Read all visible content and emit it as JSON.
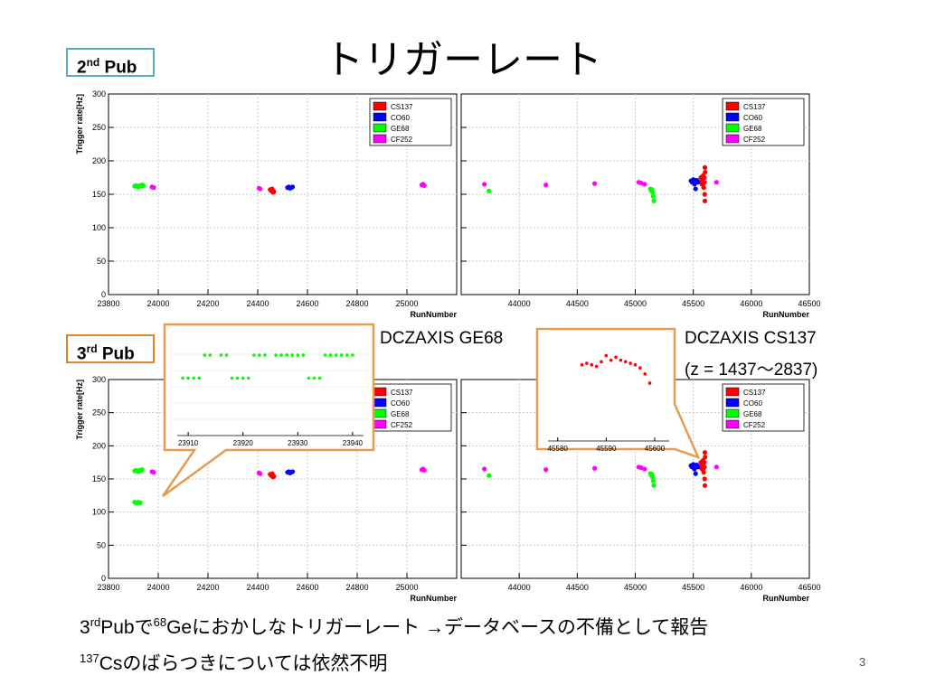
{
  "slide": {
    "title": "トリガーレート",
    "pub2": {
      "num": "2",
      "sup": "nd",
      "word": "Pub"
    },
    "pub3": {
      "num": "3",
      "sup": "rd",
      "word": "Pub"
    },
    "caption_ge": "DCZAXIS GE68",
    "caption_cs": "DCZAXIS CS137",
    "caption_z": "(z = 1437〜2837)",
    "line1": {
      "pre": "3",
      "sup1": "rd",
      "mid1": "Pubで",
      "sup2": "68",
      "rest": "Geにおかしなトリガーレート →データベースの不備として報告"
    },
    "line2": {
      "sup": "137",
      "rest": "Csのばらつきについては依然不明"
    },
    "page": "3"
  },
  "chart_data": [
    {
      "type": "scatter",
      "id": "top-left",
      "xlabel": "RunNumber",
      "ylabel": "Trigger rate[Hz]",
      "xlim": [
        23800,
        25200
      ],
      "ylim": [
        0,
        300
      ],
      "xticks": [
        23800,
        24000,
        24200,
        24400,
        24600,
        24800,
        25000
      ],
      "yticks": [
        0,
        50,
        100,
        150,
        200,
        250,
        300
      ],
      "grid": true,
      "legend": "top-right",
      "series": [
        {
          "name": "CS137",
          "color": "#ff0000",
          "points": [
            [
              24450,
              157
            ],
            [
              24455,
              155
            ],
            [
              24460,
              156
            ],
            [
              24465,
              154
            ],
            [
              24458,
              158
            ],
            [
              24462,
              153
            ]
          ]
        },
        {
          "name": "CO60",
          "color": "#0000ff",
          "points": [
            [
              24520,
              160
            ],
            [
              24525,
              161
            ],
            [
              24530,
              159
            ],
            [
              24535,
              160
            ],
            [
              24540,
              161
            ]
          ]
        },
        {
          "name": "GE68",
          "color": "#00ff00",
          "points": [
            [
              23905,
              162
            ],
            [
              23910,
              163
            ],
            [
              23915,
              162
            ],
            [
              23920,
              161
            ],
            [
              23925,
              163
            ],
            [
              23930,
              162
            ],
            [
              23935,
              164
            ],
            [
              23940,
              163
            ]
          ]
        },
        {
          "name": "CF252",
          "color": "#ff00ff",
          "points": [
            [
              23975,
              161
            ],
            [
              23982,
              160
            ],
            [
              24405,
              159
            ],
            [
              24410,
              158
            ],
            [
              25060,
              164
            ],
            [
              25065,
              165
            ],
            [
              25070,
              163
            ]
          ]
        }
      ]
    },
    {
      "type": "scatter",
      "id": "top-right",
      "xlabel": "RunNumber",
      "ylabel": "",
      "xlim": [
        43500,
        46500
      ],
      "ylim": [
        0,
        300
      ],
      "xticks": [
        44000,
        44500,
        45000,
        45500,
        46000,
        46500
      ],
      "yticks": [
        0,
        50,
        100,
        150,
        200,
        250,
        300
      ],
      "grid": true,
      "legend": "top-right",
      "series": [
        {
          "name": "CS137",
          "color": "#ff0000",
          "points": [
            [
              45560,
              168
            ],
            [
              45565,
              175
            ],
            [
              45570,
              170
            ],
            [
              45575,
              165
            ],
            [
              45580,
              172
            ],
            [
              45585,
              178
            ],
            [
              45590,
              160
            ],
            [
              45595,
              175
            ],
            [
              45598,
              150
            ],
            [
              45600,
              140
            ],
            [
              45600,
              190
            ],
            [
              45602,
              183
            ],
            [
              45597,
              168
            ],
            [
              45585,
              165
            ]
          ]
        },
        {
          "name": "CO60",
          "color": "#0000ff",
          "points": [
            [
              45480,
              170
            ],
            [
              45490,
              168
            ],
            [
              45500,
              172
            ],
            [
              45510,
              165
            ],
            [
              45520,
              158
            ],
            [
              45530,
              171
            ],
            [
              45540,
              168
            ]
          ]
        },
        {
          "name": "GE68",
          "color": "#00ff00",
          "points": [
            [
              43740,
              155
            ],
            [
              45130,
              158
            ],
            [
              45140,
              155
            ],
            [
              45150,
              153
            ],
            [
              45155,
              147
            ],
            [
              45160,
              140
            ],
            [
              45145,
              157
            ]
          ]
        },
        {
          "name": "CF252",
          "color": "#ff00ff",
          "points": [
            [
              43700,
              165
            ],
            [
              44230,
              164
            ],
            [
              44650,
              166
            ],
            [
              45030,
              168
            ],
            [
              45050,
              167
            ],
            [
              45080,
              165
            ],
            [
              45700,
              168
            ]
          ]
        }
      ]
    },
    {
      "type": "scatter",
      "id": "bottom-left",
      "xlabel": "RunNumber",
      "ylabel": "Trigger rate[Hz]",
      "xlim": [
        23800,
        25200
      ],
      "ylim": [
        0,
        300
      ],
      "xticks": [
        23800,
        24000,
        24200,
        24400,
        24600,
        24800,
        25000
      ],
      "yticks": [
        0,
        50,
        100,
        150,
        200,
        250,
        300
      ],
      "grid": true,
      "legend": "top-right",
      "series": [
        {
          "name": "CS137",
          "color": "#ff0000",
          "points": [
            [
              24450,
              157
            ],
            [
              24455,
              155
            ],
            [
              24460,
              156
            ],
            [
              24465,
              154
            ],
            [
              24458,
              158
            ],
            [
              24462,
              153
            ]
          ]
        },
        {
          "name": "CO60",
          "color": "#0000ff",
          "points": [
            [
              24520,
              160
            ],
            [
              24525,
              161
            ],
            [
              24530,
              159
            ],
            [
              24535,
              160
            ],
            [
              24540,
              161
            ]
          ]
        },
        {
          "name": "GE68",
          "color": "#00ff00",
          "points": [
            [
              23905,
              162
            ],
            [
              23910,
              163
            ],
            [
              23915,
              162
            ],
            [
              23920,
              161
            ],
            [
              23925,
              163
            ],
            [
              23930,
              162
            ],
            [
              23935,
              164
            ],
            [
              23905,
              115
            ],
            [
              23912,
              114
            ],
            [
              23920,
              115
            ],
            [
              23928,
              114
            ]
          ]
        },
        {
          "name": "CF252",
          "color": "#ff00ff",
          "points": [
            [
              23975,
              161
            ],
            [
              23982,
              160
            ],
            [
              24405,
              159
            ],
            [
              24410,
              158
            ],
            [
              25060,
              164
            ],
            [
              25065,
              165
            ],
            [
              25070,
              163
            ]
          ]
        }
      ]
    },
    {
      "type": "scatter",
      "id": "bottom-right",
      "xlabel": "RunNumber",
      "ylabel": "",
      "xlim": [
        43500,
        46500
      ],
      "ylim": [
        0,
        300
      ],
      "xticks": [
        44000,
        44500,
        45000,
        45500,
        46000,
        46500
      ],
      "yticks": [
        0,
        50,
        100,
        150,
        200,
        250,
        300
      ],
      "grid": true,
      "legend": "top-right",
      "series": [
        {
          "name": "CS137",
          "color": "#ff0000",
          "points": [
            [
              45560,
              168
            ],
            [
              45565,
              175
            ],
            [
              45570,
              170
            ],
            [
              45575,
              165
            ],
            [
              45580,
              172
            ],
            [
              45585,
              178
            ],
            [
              45590,
              160
            ],
            [
              45595,
              175
            ],
            [
              45598,
              150
            ],
            [
              45600,
              140
            ],
            [
              45600,
              190
            ],
            [
              45602,
              183
            ],
            [
              45597,
              168
            ],
            [
              45585,
              165
            ]
          ]
        },
        {
          "name": "CO60",
          "color": "#0000ff",
          "points": [
            [
              45480,
              170
            ],
            [
              45490,
              168
            ],
            [
              45500,
              172
            ],
            [
              45510,
              165
            ],
            [
              45520,
              158
            ],
            [
              45530,
              171
            ],
            [
              45540,
              168
            ]
          ]
        },
        {
          "name": "GE68",
          "color": "#00ff00",
          "points": [
            [
              43740,
              155
            ],
            [
              45130,
              158
            ],
            [
              45140,
              155
            ],
            [
              45150,
              153
            ],
            [
              45155,
              147
            ],
            [
              45160,
              140
            ],
            [
              45145,
              157
            ]
          ]
        },
        {
          "name": "CF252",
          "color": "#ff00ff",
          "points": [
            [
              43700,
              165
            ],
            [
              44230,
              164
            ],
            [
              44650,
              166
            ],
            [
              45030,
              168
            ],
            [
              45050,
              167
            ],
            [
              45080,
              165
            ],
            [
              45700,
              168
            ]
          ]
        }
      ]
    },
    {
      "type": "scatter",
      "id": "inset-ge68",
      "xlim": [
        23908,
        23942
      ],
      "ylim": [
        100,
        125
      ],
      "xticks": [
        23910,
        23920,
        23930,
        23940
      ],
      "series": [
        {
          "name": "GE68",
          "color": "#00ff00",
          "points": [
            [
              23909,
              115
            ],
            [
              23910,
              115
            ],
            [
              23911,
              115
            ],
            [
              23912,
              115
            ],
            [
              23913,
              121
            ],
            [
              23914,
              121
            ],
            [
              23916,
              121
            ],
            [
              23917,
              121
            ],
            [
              23918,
              115
            ],
            [
              23919,
              115
            ],
            [
              23920,
              115
            ],
            [
              23921,
              115
            ],
            [
              23922,
              121
            ],
            [
              23923,
              121
            ],
            [
              23924,
              121
            ],
            [
              23926,
              121
            ],
            [
              23927,
              121
            ],
            [
              23928,
              121
            ],
            [
              23929,
              121
            ],
            [
              23930,
              121
            ],
            [
              23931,
              121
            ],
            [
              23932,
              115
            ],
            [
              23933,
              115
            ],
            [
              23934,
              115
            ],
            [
              23935,
              121
            ],
            [
              23936,
              121
            ],
            [
              23937,
              121
            ],
            [
              23938,
              121
            ],
            [
              23939,
              121
            ],
            [
              23940,
              121
            ]
          ]
        }
      ]
    },
    {
      "type": "scatter",
      "id": "inset-cs137",
      "xlim": [
        45578,
        45603
      ],
      "ylim": [
        130,
        200
      ],
      "xticks": [
        45580,
        45590,
        45600
      ],
      "series": [
        {
          "name": "CS137",
          "color": "#ff0000",
          "points": [
            [
              45585,
              180
            ],
            [
              45586,
              181
            ],
            [
              45587,
              180
            ],
            [
              45588,
              179
            ],
            [
              45589,
              182
            ],
            [
              45590,
              186
            ],
            [
              45591,
              183
            ],
            [
              45592,
              185
            ],
            [
              45593,
              183
            ],
            [
              45594,
              182
            ],
            [
              45595,
              181
            ],
            [
              45596,
              180
            ],
            [
              45597,
              178
            ],
            [
              45598,
              174
            ],
            [
              45599,
              168
            ]
          ]
        }
      ]
    }
  ]
}
